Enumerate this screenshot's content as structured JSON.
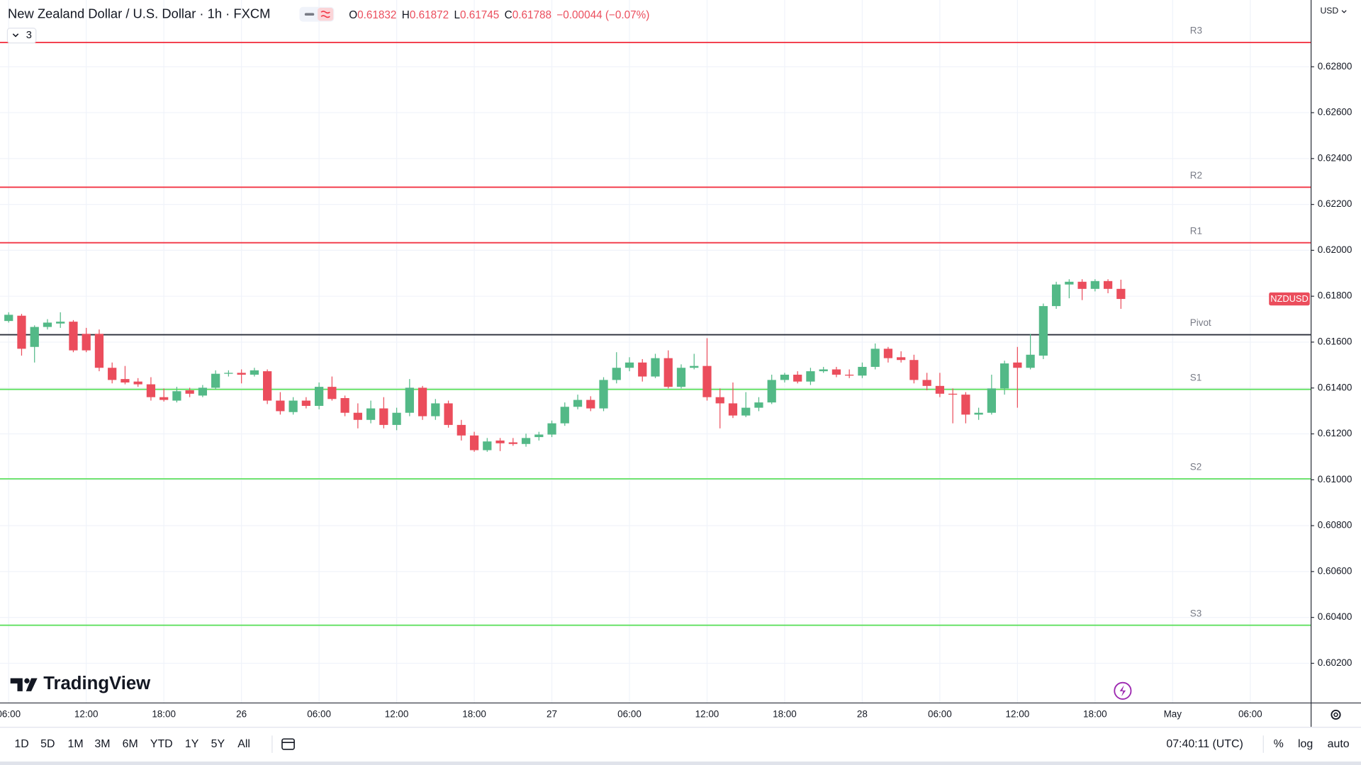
{
  "chart_data": {
    "type": "candlestick",
    "title": "New Zealand Dollar / U.S. Dollar · 1h · FXCM",
    "header_ohlc": [
      {
        "label": "O",
        "value": "0.61832"
      },
      {
        "label": "H",
        "value": "0.61872"
      },
      {
        "label": "L",
        "value": "0.61745"
      },
      {
        "label": "C",
        "value": "0.61788"
      }
    ],
    "header_change": "−0.00044 (−0.07%)",
    "indicator_count": "3",
    "currency": "USD",
    "symbol_label": "NZDUSD",
    "up_color": "#53b987",
    "down_color": "#eb4d5c",
    "open": [
      0.61692,
      0.61715,
      0.61579,
      0.61666,
      0.61681,
      0.61689,
      0.61636,
      0.61636,
      0.61488,
      0.61439,
      0.61428,
      0.61416,
      0.6136,
      0.61345,
      0.6139,
      0.61367,
      0.61401,
      0.61462,
      0.61466,
      0.61458,
      0.61473,
      0.61345,
      0.61295,
      0.61345,
      0.61322,
      0.61405,
      0.61356,
      0.61292,
      0.61261,
      0.61311,
      0.61239,
      0.61292,
      0.61401,
      0.61277,
      0.61333,
      0.61239,
      0.61193,
      0.61129,
      0.61171,
      0.61163,
      0.61156,
      0.61186,
      0.61197,
      0.61246,
      0.61318,
      0.61348,
      0.61311,
      0.61435,
      0.61488,
      0.61511,
      0.6145,
      0.6153,
      0.61405,
      0.61488,
      0.61496,
      0.6136,
      0.61333,
      0.6128,
      0.61314,
      0.61337,
      0.61435,
      0.61458,
      0.61428,
      0.61473,
      0.61481,
      0.61458,
      0.61454,
      0.61492,
      0.61571,
      0.61534,
      0.61522,
      0.61435,
      0.61409,
      0.61375,
      0.61371,
      0.61284,
      0.61292,
      0.61398,
      0.61511,
      0.61488,
      0.61541,
      0.61757,
      0.61851,
      0.61863,
      0.61832,
      0.61866,
      0.61832
    ],
    "high": [
      0.6173,
      0.61723,
      0.61673,
      0.617,
      0.6173,
      0.61696,
      0.61662,
      0.61655,
      0.61511,
      0.61496,
      0.61443,
      0.61447,
      0.61398,
      0.61405,
      0.61401,
      0.61413,
      0.61477,
      0.61477,
      0.61481,
      0.61488,
      0.61481,
      0.61382,
      0.6136,
      0.6136,
      0.61424,
      0.6145,
      0.61367,
      0.61333,
      0.61345,
      0.6136,
      0.61314,
      0.61439,
      0.61409,
      0.61352,
      0.61345,
      0.61261,
      0.61209,
      0.61182,
      0.61182,
      0.61182,
      0.61201,
      0.61209,
      0.61258,
      0.61337,
      0.61371,
      0.61364,
      0.61447,
      0.61556,
      0.61534,
      0.61526,
      0.61549,
      0.61564,
      0.61503,
      0.61549,
      0.61617,
      0.61398,
      0.61424,
      0.61382,
      0.6136,
      0.61458,
      0.61466,
      0.61473,
      0.61488,
      0.61492,
      0.61492,
      0.61481,
      0.61511,
      0.61594,
      0.61579,
      0.6156,
      0.61545,
      0.61466,
      0.61466,
      0.61398,
      0.61382,
      0.61314,
      0.61458,
      0.61519,
      0.61579,
      0.61636,
      0.61768,
      0.61863,
      0.61874,
      0.61874,
      0.61874,
      0.61874,
      0.61872
    ],
    "low": [
      0.61685,
      0.61541,
      0.61511,
      0.61655,
      0.61662,
      0.61556,
      0.61556,
      0.61473,
      0.6142,
      0.61416,
      0.61405,
      0.61345,
      0.61341,
      0.61337,
      0.6136,
      0.6136,
      0.61394,
      0.6145,
      0.6142,
      0.6145,
      0.6133,
      0.61284,
      0.61284,
      0.61311,
      0.61307,
      0.61345,
      0.61277,
      0.61224,
      0.61246,
      0.61224,
      0.61216,
      0.61277,
      0.61261,
      0.61261,
      0.61227,
      0.61171,
      0.61122,
      0.61122,
      0.61125,
      0.61148,
      0.61144,
      0.61171,
      0.61186,
      0.61235,
      0.61307,
      0.61299,
      0.61299,
      0.6142,
      0.61473,
      0.61428,
      0.61443,
      0.61398,
      0.61398,
      0.61481,
      0.61345,
      0.61224,
      0.61269,
      0.61273,
      0.61299,
      0.6133,
      0.61424,
      0.6142,
      0.61413,
      0.61466,
      0.61447,
      0.61443,
      0.61443,
      0.61481,
      0.61511,
      0.61511,
      0.6142,
      0.6139,
      0.6136,
      0.61246,
      0.61246,
      0.61261,
      0.61284,
      0.61371,
      0.61314,
      0.61481,
      0.61526,
      0.61745,
      0.61791,
      0.61783,
      0.61821,
      0.61813,
      0.61745
    ],
    "close": [
      0.61719,
      0.61571,
      0.61666,
      0.61685,
      0.61689,
      0.61564,
      0.61564,
      0.61488,
      0.61435,
      0.61424,
      0.61416,
      0.6136,
      0.61348,
      0.61386,
      0.61375,
      0.61401,
      0.61462,
      0.61466,
      0.61458,
      0.61477,
      0.61345,
      0.61299,
      0.61345,
      0.61322,
      0.61405,
      0.61352,
      0.61292,
      0.61261,
      0.61311,
      0.61239,
      0.61292,
      0.61401,
      0.61277,
      0.61333,
      0.61239,
      0.61193,
      0.61129,
      0.61167,
      0.61159,
      0.61156,
      0.61182,
      0.61197,
      0.61246,
      0.61318,
      0.61348,
      0.61311,
      0.61435,
      0.61488,
      0.61511,
      0.6145,
      0.6153,
      0.61405,
      0.61488,
      0.61496,
      0.6136,
      0.61333,
      0.6128,
      0.61314,
      0.61337,
      0.61435,
      0.61458,
      0.61428,
      0.61473,
      0.61481,
      0.61458,
      0.61454,
      0.61492,
      0.61571,
      0.6153,
      0.61522,
      0.61435,
      0.61409,
      0.61375,
      0.61371,
      0.61284,
      0.61292,
      0.61398,
      0.61507,
      0.61488,
      0.61545,
      0.61757,
      0.61851,
      0.61863,
      0.61832,
      0.61866,
      0.61832,
      0.61788
    ],
    "levels": [
      {
        "name": "R3",
        "value": 0.62906,
        "color": "#f23645"
      },
      {
        "name": "R2",
        "value": 0.62275,
        "color": "#f23645"
      },
      {
        "name": "R1",
        "value": 0.62033,
        "color": "#f23645"
      },
      {
        "name": "Pivot",
        "value": 0.61632,
        "color": "#2a2e39"
      },
      {
        "name": "S1",
        "value": 0.61394,
        "color": "#5fe05f"
      },
      {
        "name": "S2",
        "value": 0.61004,
        "color": "#5fe05f"
      },
      {
        "name": "S3",
        "value": 0.60366,
        "color": "#5fe05f"
      }
    ],
    "xlim": [
      -0.67,
      100.67
    ],
    "xticks": [
      {
        "value": 0,
        "label": "06:00"
      },
      {
        "value": 6,
        "label": "12:00"
      },
      {
        "value": 12,
        "label": "18:00"
      },
      {
        "value": 18,
        "label": "26"
      },
      {
        "value": 24,
        "label": "06:00"
      },
      {
        "value": 30,
        "label": "12:00"
      },
      {
        "value": 36,
        "label": "18:00"
      },
      {
        "value": 42,
        "label": "27"
      },
      {
        "value": 48,
        "label": "06:00"
      },
      {
        "value": 54,
        "label": "12:00"
      },
      {
        "value": 60,
        "label": "18:00"
      },
      {
        "value": 66,
        "label": "28"
      },
      {
        "value": 72,
        "label": "06:00"
      },
      {
        "value": 78,
        "label": "12:00"
      },
      {
        "value": 84,
        "label": "18:00"
      },
      {
        "value": 90,
        "label": "May"
      },
      {
        "value": 96,
        "label": "06:00"
      }
    ],
    "ylim": [
      0.60029,
      0.63091
    ],
    "yticks": [
      {
        "value": 0.602,
        "label": "0.60200"
      },
      {
        "value": 0.604,
        "label": "0.60400"
      },
      {
        "value": 0.606,
        "label": "0.60600"
      },
      {
        "value": 0.608,
        "label": "0.60800"
      },
      {
        "value": 0.61,
        "label": "0.61000"
      },
      {
        "value": 0.612,
        "label": "0.61200"
      },
      {
        "value": 0.614,
        "label": "0.61400"
      },
      {
        "value": 0.616,
        "label": "0.61600"
      },
      {
        "value": 0.618,
        "label": "0.61800"
      },
      {
        "value": 0.62,
        "label": "0.62000"
      },
      {
        "value": 0.622,
        "label": "0.62200"
      },
      {
        "value": 0.624,
        "label": "0.62400"
      },
      {
        "value": 0.626,
        "label": "0.62600"
      },
      {
        "value": 0.628,
        "label": "0.62800"
      }
    ],
    "grid": true
  },
  "toolbar": {
    "ranges": [
      "1D",
      "5D",
      "1M",
      "3M",
      "6M",
      "YTD",
      "1Y",
      "5Y",
      "All"
    ],
    "clock": "07:40:11 (UTC)",
    "scale_buttons": [
      "%",
      "log",
      "auto"
    ]
  },
  "logo": "TradingView"
}
